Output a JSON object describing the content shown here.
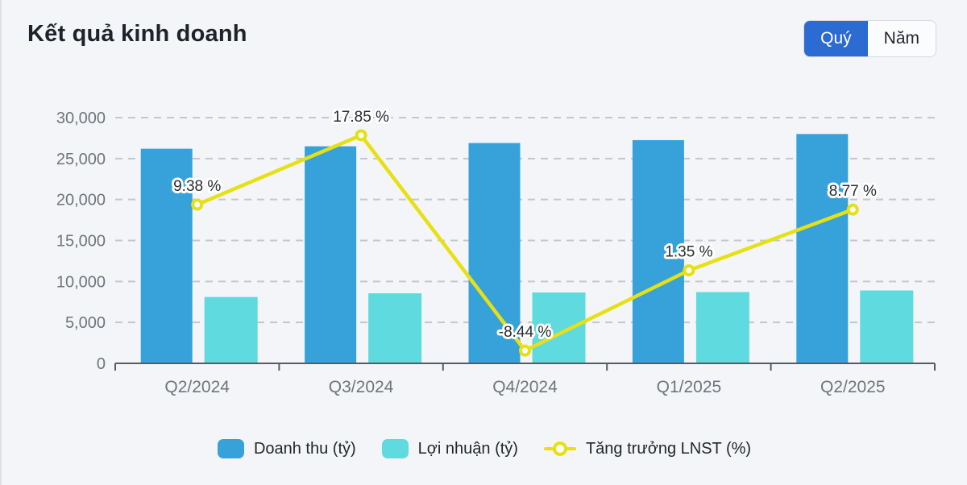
{
  "header": {
    "title": "Kết quả kinh doanh",
    "toggle": {
      "options": [
        "Quý",
        "Năm"
      ],
      "selected": "Quý"
    }
  },
  "chart_data": {
    "type": "bar",
    "subtype": "grouped-bars-with-line-overlay",
    "categories": [
      "Q2/2024",
      "Q3/2024",
      "Q4/2024",
      "Q1/2025",
      "Q2/2025"
    ],
    "series": [
      {
        "name": "Doanh thu (tỷ)",
        "type": "bar",
        "color": "#37a2da",
        "values": [
          26200,
          26500,
          26900,
          27250,
          28000
        ]
      },
      {
        "name": "Lợi nhuận (tỷ)",
        "type": "bar",
        "color": "#5fdadf",
        "values": [
          8100,
          8550,
          8650,
          8700,
          8900
        ]
      },
      {
        "name": "Tăng trưởng LNST (%)",
        "type": "line",
        "color": "#e7e013",
        "values": [
          9.38,
          17.85,
          -8.44,
          1.35,
          8.77
        ],
        "point_labels": [
          "9.38 %",
          "17.85 %",
          "-8.44 %",
          "1.35 %",
          "8.77 %"
        ],
        "secondary_axis": {
          "min": -10,
          "max": 20,
          "visible": false
        }
      }
    ],
    "y_axis": {
      "min": 0,
      "max": 30000,
      "tick_values": [
        0,
        5000,
        10000,
        15000,
        20000,
        25000,
        30000
      ],
      "tick_labels": [
        "0",
        "5,000",
        "10,000",
        "15,000",
        "20,000",
        "25,000",
        "30,000"
      ]
    },
    "grid": "horizontal-dashed",
    "legend_position": "bottom",
    "title": "Kết quả kinh doanh",
    "xlabel": "",
    "ylabel": ""
  },
  "colors": {
    "background": "#f3f5f8",
    "revenue_bar": "#37a2da",
    "profit_bar": "#5fdadf",
    "growth_line": "#e7e013",
    "toggle_selected": "#2c6bd2",
    "axis_line": "#575c64",
    "grid_line": "#c3c8ce",
    "tick_text": "#6f757d",
    "label_text": "#272b32"
  }
}
